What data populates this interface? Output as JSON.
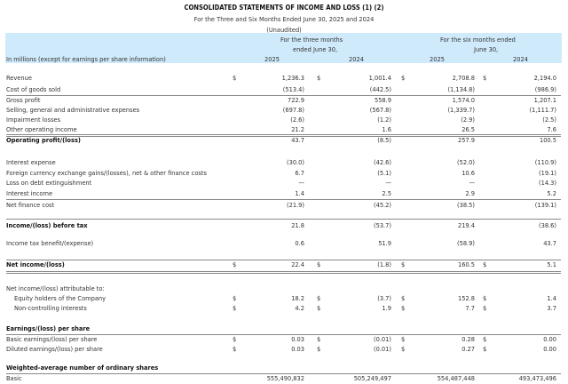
{
  "header": {
    "title": "CONSOLIDATED STATEMENTS OF INCOME AND LOSS (1) (2)",
    "subtitle": "For the Three and Six Months Ended June 30, 2025 and 2024",
    "note": "(Unaudited)",
    "units_label": "In millions (except for earnings per share information)",
    "three_months_l1": "For the three months",
    "three_months_l2": "ended June 30,",
    "six_months_l1": "For the six months ended",
    "six_months_l2": "June 30,",
    "years": [
      "2025",
      "2024",
      "2025",
      "2024"
    ],
    "bg_color": "#cfeafb"
  },
  "rows": [
    {
      "label": "Revenue",
      "cur": true,
      "values": [
        "1,236.3",
        "1,001.4",
        "2,708.8",
        "2,194.0"
      ]
    },
    {
      "label": "Cost of goods sold",
      "values": [
        "(513.4)",
        "(442.5)",
        "(1,134.8)",
        "(986.9)"
      ]
    },
    {
      "label": "Gross profit",
      "values": [
        "722.9",
        "558.9",
        "1,574.0",
        "1,207.1"
      ]
    },
    {
      "label": "Selling, general and administrative expenses",
      "values": [
        "(697.8)",
        "(567.8)",
        "(1,339.7)",
        "(1,111.7)"
      ]
    },
    {
      "label": "Impairment losses",
      "values": [
        "(2.6)",
        "(1.2)",
        "(2.9)",
        "(2.5)"
      ]
    },
    {
      "label": "Other operating income",
      "values": [
        "21.2",
        "1.6",
        "26.5",
        "7.6"
      ]
    },
    {
      "label": "Operating profit/(loss)",
      "bold": true,
      "values": [
        "43.7",
        "(8.5)",
        "257.9",
        "100.5"
      ]
    },
    {
      "label": "Interest expense",
      "values": [
        "(30.0)",
        "(42.6)",
        "(52.0)",
        "(110.9)"
      ]
    },
    {
      "label": "Foreign currency exchange gains/(losses), net & other finance costs",
      "values": [
        "6.7",
        "(5.1)",
        "10.6",
        "(19.1)"
      ]
    },
    {
      "label": "Loss on debt extinguishment",
      "values": [
        "—",
        "—",
        "—",
        "(14.3)"
      ]
    },
    {
      "label": "Interest income",
      "values": [
        "1.4",
        "2.5",
        "2.9",
        "5.2"
      ]
    },
    {
      "label": "Net finance cost",
      "values": [
        "(21.9)",
        "(45.2)",
        "(38.5)",
        "(139.1)"
      ]
    },
    {
      "label": "Income/(loss) before tax",
      "bold": true,
      "values": [
        "21.8",
        "(53.7)",
        "219.4",
        "(38.6)"
      ]
    },
    {
      "label": "Income tax benefit/(expense)",
      "values": [
        "0.6",
        "51.9",
        "(58.9)",
        "43.7"
      ]
    },
    {
      "label": "Net income/(loss)",
      "bold": true,
      "cur": true,
      "values": [
        "22.4",
        "(1.8)",
        "160.5",
        "5.1"
      ]
    },
    {
      "label": "Net income/(loss) attributable to:",
      "values": [
        "",
        "",
        "",
        ""
      ]
    },
    {
      "label": "Equity holders of the Company",
      "indent": true,
      "cur": true,
      "values": [
        "18.2",
        "(3.7)",
        "152.8",
        "1.4"
      ]
    },
    {
      "label": "Non-controlling interests",
      "indent": true,
      "cur": true,
      "values": [
        "4.2",
        "1.9",
        "7.7",
        "3.7"
      ]
    },
    {
      "label": "Earnings/(loss) per share",
      "bold": true,
      "values": [
        "",
        "",
        "",
        ""
      ]
    },
    {
      "label": "Basic earnings/(loss) per share",
      "cur": true,
      "values": [
        "0.03",
        "(0.01)",
        "0.28",
        "0.00"
      ]
    },
    {
      "label": "Diluted earnings/(loss) per share",
      "cur": true,
      "values": [
        "0.03",
        "(0.01)",
        "0.27",
        "0.00"
      ]
    },
    {
      "label": "Weighted-average number of ordinary shares",
      "bold": true,
      "values": [
        "",
        "",
        "",
        ""
      ]
    },
    {
      "label": "Basic",
      "values": [
        "555,490,832",
        "505,249,497",
        "554,487,448",
        "493,473,496"
      ]
    }
  ],
  "currency_symbol": "$"
}
